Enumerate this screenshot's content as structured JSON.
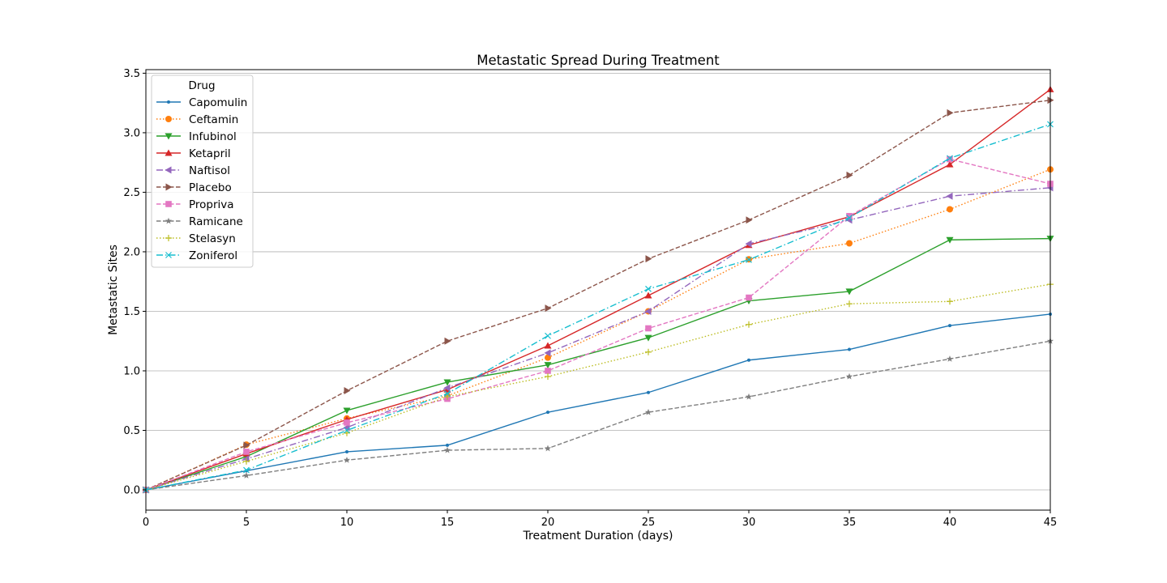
{
  "chart_data": {
    "type": "line",
    "title": "Metastatic Spread During Treatment",
    "xlabel": "Treatment Duration (days)",
    "ylabel": "Metastatic Sites",
    "xlim": [
      0,
      45
    ],
    "ylim": [
      -0.17,
      3.53
    ],
    "xticks": [
      0,
      5,
      10,
      15,
      20,
      25,
      30,
      35,
      40,
      45
    ],
    "yticks": [
      0.0,
      0.5,
      1.0,
      1.5,
      2.0,
      2.5,
      3.0,
      3.5
    ],
    "grid": "horizontal",
    "legend": {
      "title": "Drug",
      "position": "top-left"
    },
    "x": [
      0,
      5,
      10,
      15,
      20,
      25,
      30,
      35,
      40,
      45
    ],
    "series": [
      {
        "name": "Capomulin",
        "color": "#1f77b4",
        "marker": "point",
        "dash": "solid",
        "values": [
          0.0,
          0.16,
          0.32,
          0.375,
          0.652,
          0.818,
          1.09,
          1.18,
          1.38,
          1.476
        ]
      },
      {
        "name": "Ceftamin",
        "color": "#ff7f0e",
        "marker": "circle",
        "dash": "dotted",
        "values": [
          0.0,
          0.38,
          0.6,
          0.79,
          1.111,
          1.5,
          1.937,
          2.071,
          2.357,
          2.692
        ]
      },
      {
        "name": "Infubinol",
        "color": "#2ca02c",
        "marker": "triangle-down",
        "dash": "solid",
        "values": [
          0.0,
          0.28,
          0.667,
          0.905,
          1.05,
          1.278,
          1.588,
          1.667,
          2.1,
          2.111
        ]
      },
      {
        "name": "Ketapril",
        "color": "#d62728",
        "marker": "triangle-up",
        "dash": "solid",
        "values": [
          0.0,
          0.304,
          0.591,
          0.842,
          1.211,
          1.632,
          2.056,
          2.294,
          2.733,
          3.364
        ]
      },
      {
        "name": "Naftisol",
        "color": "#9467bd",
        "marker": "triangle-left",
        "dash": "dashdot",
        "values": [
          0.0,
          0.26,
          0.524,
          0.857,
          1.15,
          1.5,
          2.067,
          2.267,
          2.467,
          2.538
        ]
      },
      {
        "name": "Placebo",
        "color": "#8c564b",
        "marker": "triangle-right",
        "dash": "dashed",
        "values": [
          0.0,
          0.375,
          0.833,
          1.25,
          1.526,
          1.941,
          2.267,
          2.643,
          3.167,
          3.273
        ]
      },
      {
        "name": "Propriva",
        "color": "#e377c2",
        "marker": "square",
        "dash": "dashed",
        "values": [
          0.0,
          0.32,
          0.565,
          0.765,
          1.0,
          1.357,
          1.615,
          2.3,
          2.778,
          2.571
        ]
      },
      {
        "name": "Ramicane",
        "color": "#7f7f7f",
        "marker": "star",
        "dash": "dashed",
        "values": [
          0.0,
          0.12,
          0.25,
          0.333,
          0.348,
          0.652,
          0.782,
          0.952,
          1.1,
          1.25
        ]
      },
      {
        "name": "Stelasyn",
        "color": "#bcbd22",
        "marker": "plus",
        "dash": "dotted",
        "values": [
          0.0,
          0.24,
          0.478,
          0.783,
          0.952,
          1.158,
          1.389,
          1.563,
          1.583,
          1.727
        ]
      },
      {
        "name": "Zoniferol",
        "color": "#17becf",
        "marker": "x",
        "dash": "dashdot",
        "values": [
          0.0,
          0.166,
          0.5,
          0.809,
          1.294,
          1.688,
          1.933,
          2.286,
          2.786,
          3.071
        ]
      }
    ]
  }
}
